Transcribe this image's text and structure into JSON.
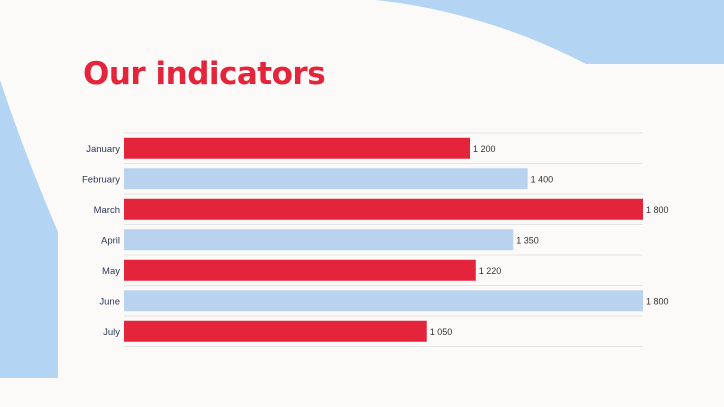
{
  "title": "Our indicators",
  "colors": {
    "background": "#fcfaf9",
    "accent": "#e3243b",
    "light": "#b9d3ee",
    "decor": "#b3d4f2",
    "label": "#2d3a56"
  },
  "chart_data": {
    "type": "bar",
    "orientation": "horizontal",
    "categories": [
      "January",
      "February",
      "March",
      "April",
      "May",
      "June",
      "July"
    ],
    "values": [
      1200,
      1400,
      1800,
      1350,
      1220,
      1800,
      1050
    ],
    "data_labels": [
      "1 200",
      "1 400",
      "1 800",
      "1 350",
      "1 220",
      "1 800",
      "1 050"
    ],
    "bar_colors": [
      "#e3243b",
      "#b9d3ee",
      "#e3243b",
      "#b9d3ee",
      "#e3243b",
      "#b9d3ee",
      "#e3243b"
    ],
    "xlim": [
      0,
      1800
    ],
    "grid": true,
    "legend": "none"
  }
}
